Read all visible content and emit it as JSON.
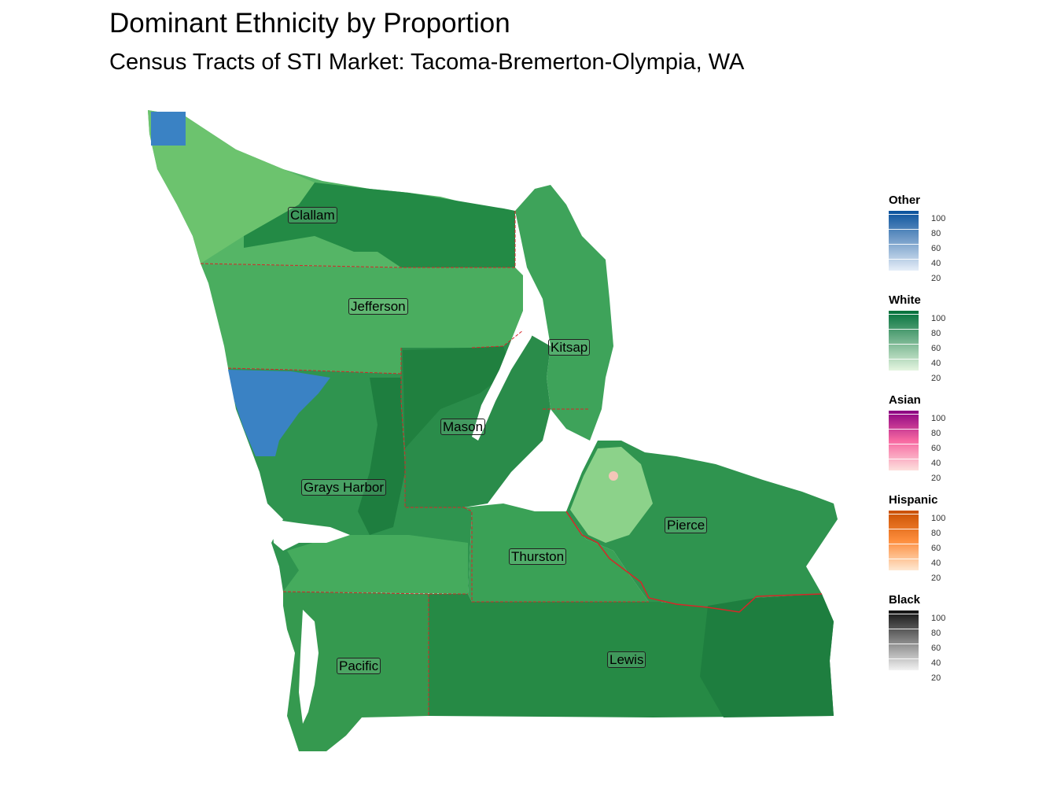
{
  "title": "Dominant Ethnicity by Proportion",
  "subtitle": "Census Tracts of STI Market: Tacoma-Bremerton-Olympia, WA",
  "map": {
    "counties": [
      {
        "name": "Clallam"
      },
      {
        "name": "Jefferson"
      },
      {
        "name": "Kitsap"
      },
      {
        "name": "Mason"
      },
      {
        "name": "Grays Harbor"
      },
      {
        "name": "Pierce"
      },
      {
        "name": "Thurston"
      },
      {
        "name": "Pacific"
      },
      {
        "name": "Lewis"
      }
    ],
    "colors": {
      "white_dominant": "#2f944f",
      "white_light": "#8cd28a",
      "other_dominant": "#3a82c4",
      "county_border": "#d62728"
    }
  },
  "legend": [
    {
      "title": "Other",
      "colors": [
        "#e6eef8",
        "#08519c"
      ],
      "ticks": [
        "100",
        "80",
        "60",
        "40",
        "20"
      ]
    },
    {
      "title": "White",
      "colors": [
        "#e5f5e0",
        "#00703a"
      ],
      "ticks": [
        "100",
        "80",
        "60",
        "40",
        "20"
      ]
    },
    {
      "title": "Asian",
      "colors": [
        "#fde0dd",
        "#8a0082"
      ],
      "ticks": [
        "100",
        "80",
        "60",
        "40",
        "20"
      ]
    },
    {
      "title": "Hispanic",
      "colors": [
        "#fee8d2",
        "#c94f00"
      ],
      "ticks": [
        "100",
        "80",
        "60",
        "40",
        "20"
      ]
    },
    {
      "title": "Black",
      "colors": [
        "#f2f2f2",
        "#111111"
      ],
      "ticks": [
        "100",
        "80",
        "60",
        "40",
        "20"
      ]
    }
  ]
}
